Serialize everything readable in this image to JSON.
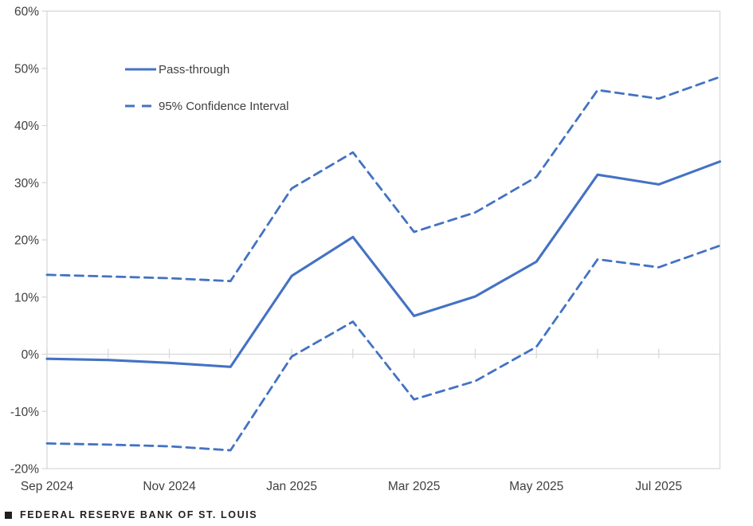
{
  "chart_data": {
    "type": "line",
    "title": "",
    "xlabel": "",
    "ylabel": "",
    "x": [
      "Sep 2024",
      "Oct 2024",
      "Nov 2024",
      "Dec 2024",
      "Jan 2025",
      "Feb 2025",
      "Mar 2025",
      "Apr 2025",
      "May 2025",
      "Jun 2025",
      "Jul 2025",
      "Aug 2025"
    ],
    "x_tick_labels": [
      "Sep 2024",
      "Nov 2024",
      "Jan 2025",
      "Mar 2025",
      "May 2025",
      "Jul 2025"
    ],
    "x_tick_label_indices": [
      0,
      2,
      4,
      6,
      8,
      10
    ],
    "series": [
      {
        "name": "Pass-through",
        "style": "solid",
        "values": [
          -0.8,
          -1.0,
          -1.5,
          -2.2,
          13.7,
          20.5,
          6.7,
          10.1,
          16.2,
          31.4,
          29.7,
          33.7
        ]
      },
      {
        "name": "95% Confidence Interval (upper)",
        "style": "dashed",
        "values": [
          13.9,
          13.6,
          13.3,
          12.8,
          29.0,
          35.3,
          21.4,
          24.8,
          31.0,
          46.2,
          44.7,
          48.5
        ]
      },
      {
        "name": "95% Confidence Interval (lower)",
        "style": "dashed",
        "values": [
          -15.6,
          -15.8,
          -16.1,
          -16.8,
          -0.4,
          5.7,
          -7.9,
          -4.7,
          1.3,
          16.6,
          15.2,
          19.0
        ]
      }
    ],
    "ylim": [
      -20,
      60
    ],
    "y_tick_values": [
      60,
      50,
      40,
      30,
      20,
      10,
      0,
      -10,
      -20
    ],
    "y_tick_labels": [
      "60%",
      "50%",
      "40%",
      "30%",
      "20%",
      "10%",
      "0%",
      "-10%",
      "-20%"
    ],
    "grid": false,
    "x_axis_position_value": 0,
    "legend": {
      "position": "inside-top-left",
      "entries": [
        {
          "label": "Pass-through",
          "style": "solid"
        },
        {
          "label": "95% Confidence Interval",
          "style": "dashed"
        }
      ]
    },
    "colors": {
      "line": "#4472C4",
      "axis": "#D9D9D9",
      "text": "#3f3f3f"
    }
  },
  "footer": {
    "source": "FEDERAL RESERVE BANK OF ST. LOUIS"
  }
}
